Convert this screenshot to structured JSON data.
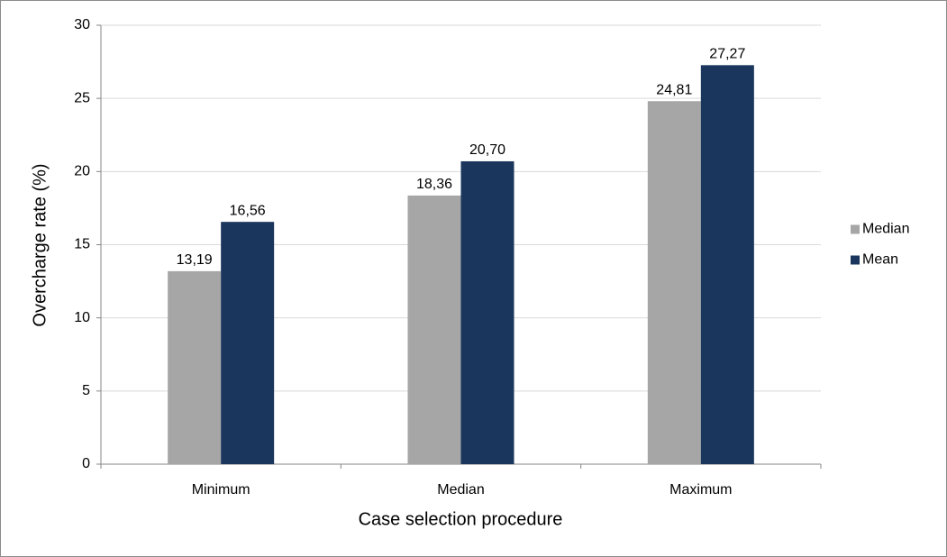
{
  "chart_data": {
    "type": "bar",
    "x_label": "Case selection procedure",
    "y_label": "Overcharge rate (%)",
    "categories": [
      "Minimum",
      "Median",
      "Maximum"
    ],
    "series": [
      {
        "name": "Median",
        "color": "#a6a6a6",
        "values": [
          13.19,
          18.36,
          24.81
        ],
        "value_labels": [
          "13,19",
          "18,36",
          "24,81"
        ]
      },
      {
        "name": "Mean",
        "color": "#1a365d",
        "values": [
          16.56,
          20.7,
          27.27
        ],
        "value_labels": [
          "16,56",
          "20,70",
          "27,27"
        ]
      }
    ],
    "ylim": [
      0,
      30
    ],
    "yticks": [
      0,
      5,
      10,
      15,
      20,
      25,
      30
    ],
    "grid": true,
    "legend": "right"
  }
}
